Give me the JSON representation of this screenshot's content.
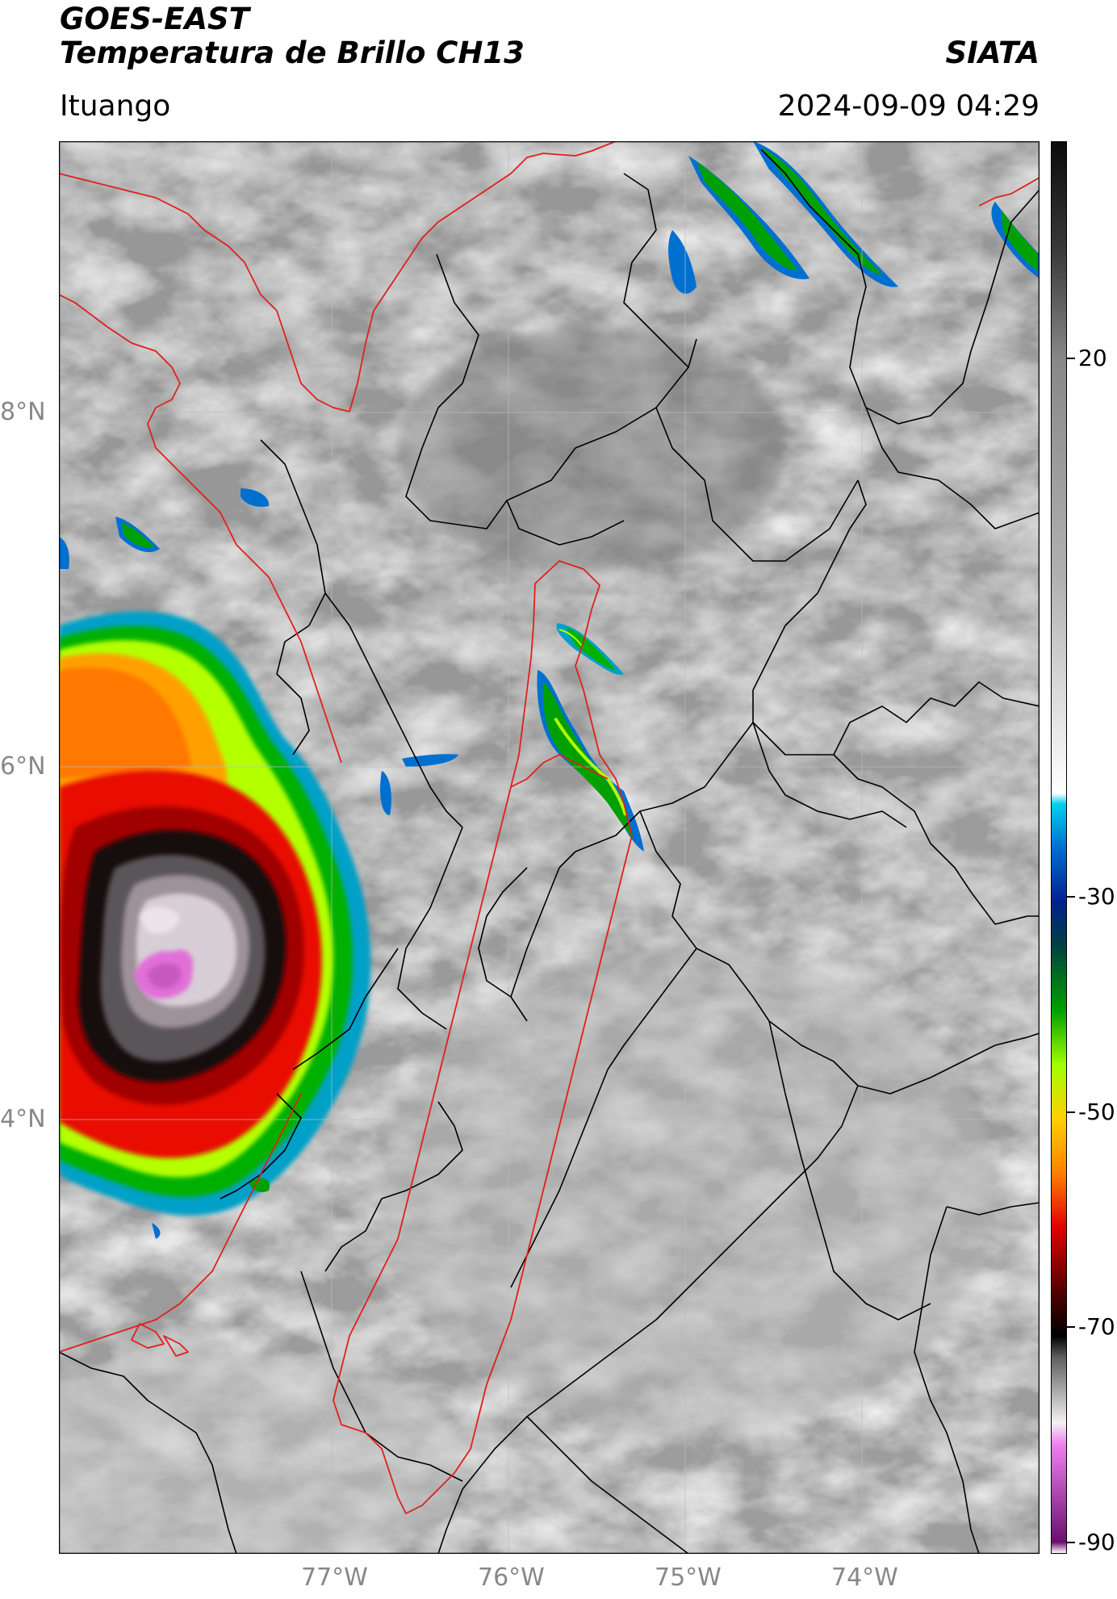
{
  "header": {
    "satellite": "GOES-EAST",
    "product": "Temperatura de Brillo CH13",
    "org": "SIATA",
    "location": "Ituango",
    "datetime": "2024-09-09 04:29"
  },
  "map": {
    "lat_labels": [
      "8°N",
      "6°N",
      "4°N"
    ],
    "lon_labels": [
      "77°W",
      "76°W",
      "75°W",
      "74°W"
    ],
    "colors": {
      "border_red": "#e0201c",
      "border_black": "#000000",
      "cloud_gray": "#8a8a8a"
    }
  },
  "colorbar": {
    "tick_labels": [
      "20",
      "-30",
      "-50",
      "-70",
      "-90"
    ],
    "unit": "",
    "stops": [
      {
        "value": -90,
        "color": "#ffffff"
      },
      {
        "value": -89,
        "color": "#6a0f6e"
      },
      {
        "value": -84,
        "color": "#b54eb8"
      },
      {
        "value": -80,
        "color": "#f07ff0"
      },
      {
        "value": -78,
        "color": "#f4f0f4"
      },
      {
        "value": -72,
        "color": "#606060"
      },
      {
        "value": -70,
        "color": "#000000"
      },
      {
        "value": -66,
        "color": "#500000"
      },
      {
        "value": -60,
        "color": "#e00000"
      },
      {
        "value": -55,
        "color": "#ff8000"
      },
      {
        "value": -50,
        "color": "#ffd000"
      },
      {
        "value": -45,
        "color": "#a0ff00"
      },
      {
        "value": -40,
        "color": "#00a000"
      },
      {
        "value": -34,
        "color": "#004040"
      },
      {
        "value": -30,
        "color": "#002090"
      },
      {
        "value": -25,
        "color": "#0070d0"
      },
      {
        "value": -21,
        "color": "#00d0f0"
      },
      {
        "value": -20,
        "color": "#ffffff"
      },
      {
        "value": 0,
        "color": "#b0b0b0"
      },
      {
        "value": 20,
        "color": "#888888"
      },
      {
        "value": 30,
        "color": "#3a3a3a"
      },
      {
        "value": 40,
        "color": "#0a0a0a"
      }
    ]
  }
}
